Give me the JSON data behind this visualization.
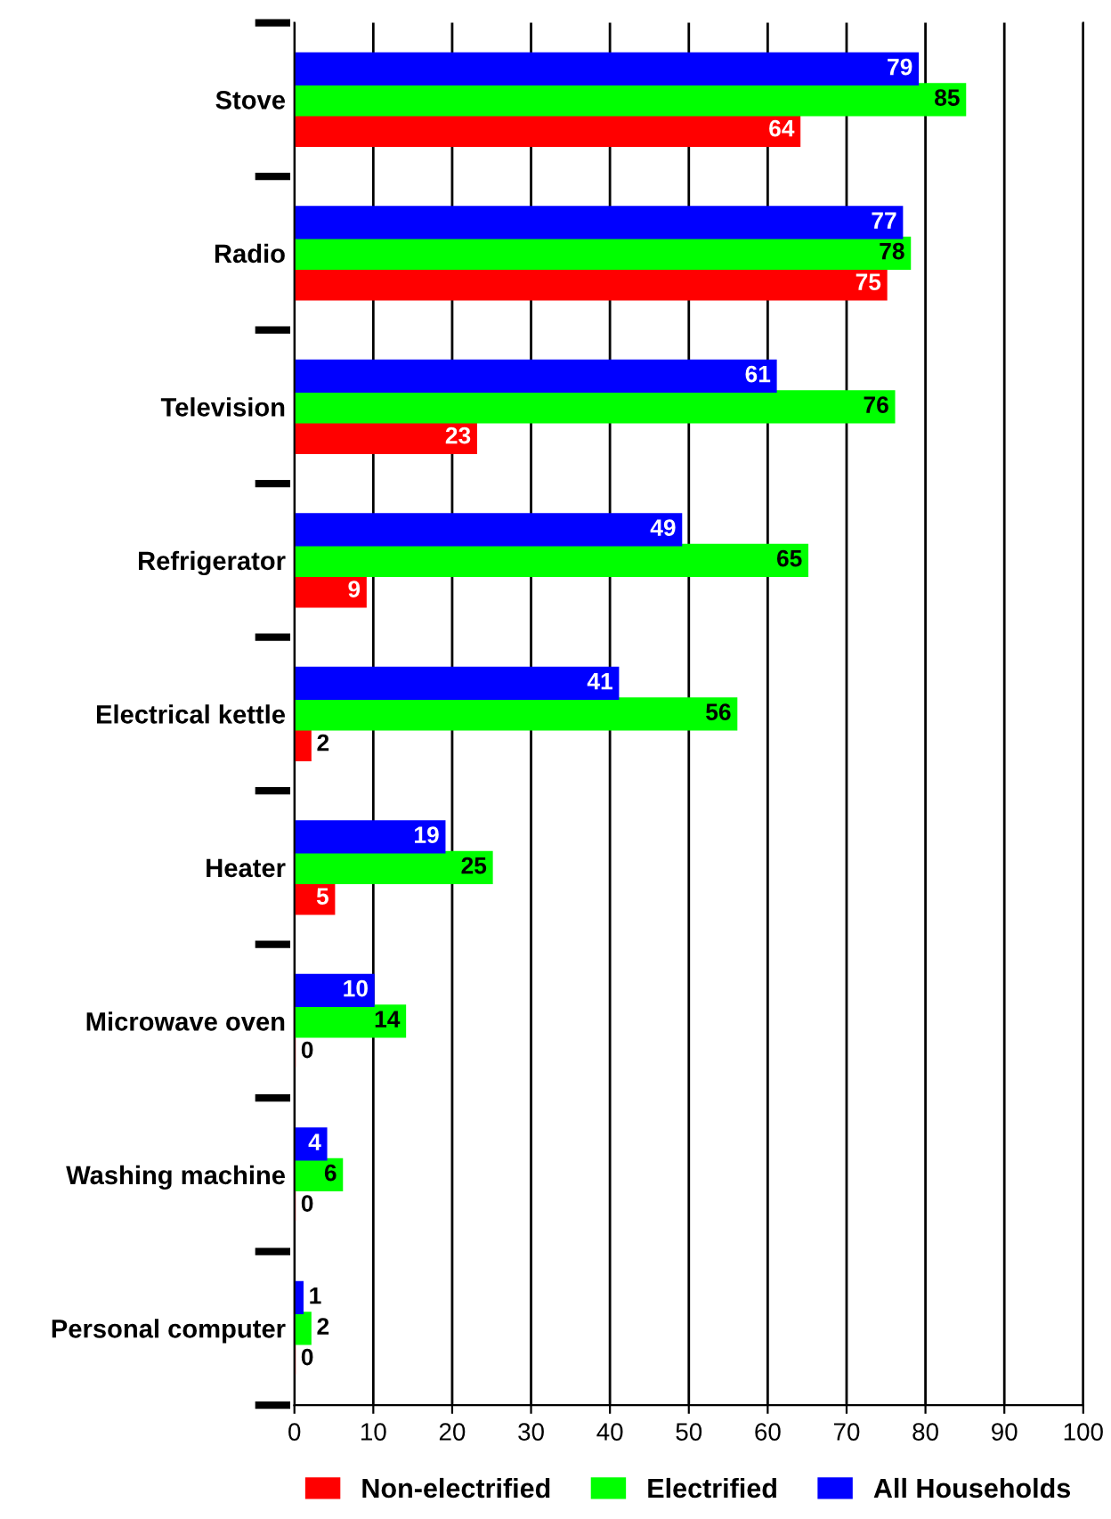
{
  "chart_data": {
    "type": "bar",
    "orientation": "horizontal",
    "categories": [
      "Stove",
      "Radio",
      "Television",
      "Refrigerator",
      "Electrical kettle",
      "Heater",
      "Microwave oven",
      "Washing machine",
      "Personal computer"
    ],
    "series": [
      {
        "name": "Non-electrified",
        "color": "#ff0000",
        "values": [
          64,
          75,
          23,
          9,
          2,
          5,
          0,
          0,
          0
        ]
      },
      {
        "name": "Electrified",
        "color": "#00ff00",
        "values": [
          85,
          78,
          76,
          65,
          56,
          25,
          14,
          6,
          2
        ]
      },
      {
        "name": "All Households",
        "color": "#0000ff",
        "values": [
          79,
          77,
          61,
          49,
          41,
          19,
          10,
          4,
          1
        ]
      }
    ],
    "xlim": [
      0,
      100
    ],
    "xticks": [
      0,
      10,
      20,
      30,
      40,
      50,
      60,
      70,
      80,
      90,
      100
    ],
    "grid": "x",
    "legend": "bottom",
    "data_labels": true
  }
}
